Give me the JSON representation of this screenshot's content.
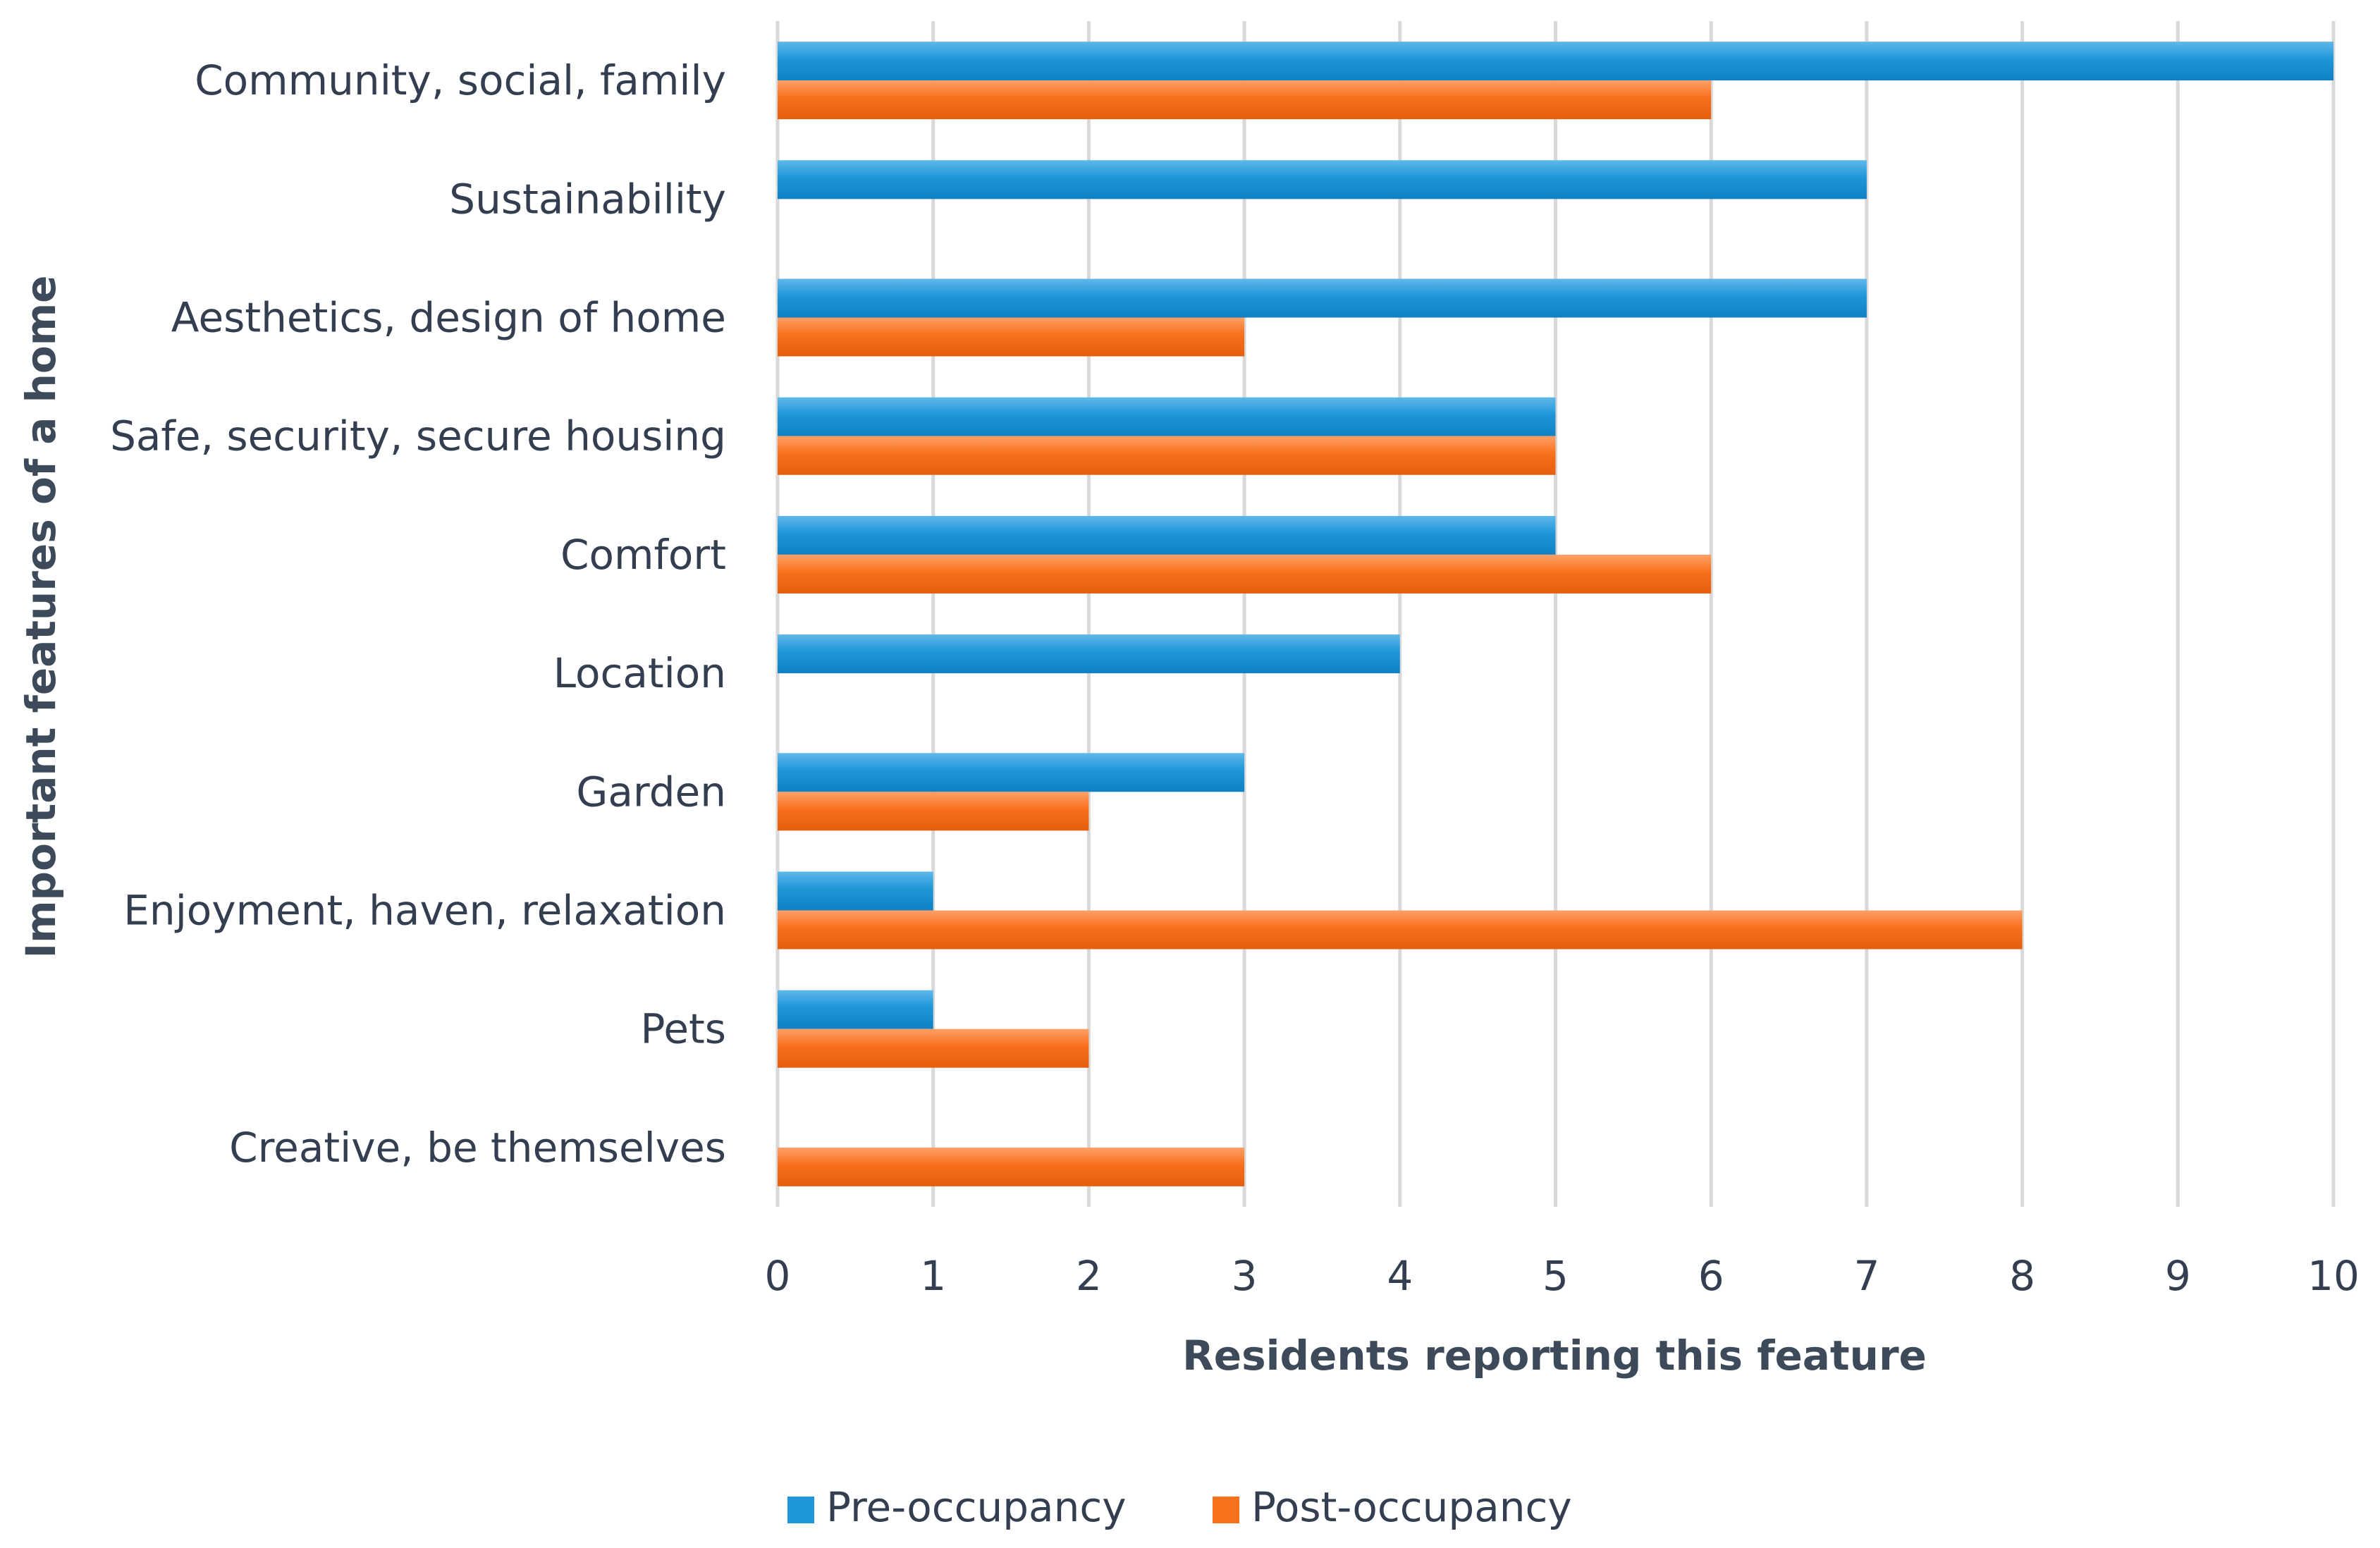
{
  "chart_data": {
    "type": "bar",
    "orientation": "horizontal",
    "title": "",
    "xlabel": "Residents reporting this feature",
    "ylabel": "Important features of a home",
    "xlim": [
      0,
      10
    ],
    "x_ticks": [
      0,
      1,
      2,
      3,
      4,
      5,
      6,
      7,
      8,
      9,
      10
    ],
    "grid": true,
    "legend_position": "bottom",
    "categories": [
      "Community, social, family",
      "Sustainability",
      "Aesthetics, design of home",
      "Safe, security, secure housing",
      "Comfort",
      "Location",
      "Garden",
      "Enjoyment, haven, relaxation",
      "Pets",
      "Creative, be themselves"
    ],
    "series": [
      {
        "name": "Pre-occupancy",
        "color": "#1f96d8",
        "values": [
          10,
          7,
          7,
          5,
          5,
          4,
          3,
          1,
          1,
          0
        ]
      },
      {
        "name": "Post-occupancy",
        "color": "#f8701c",
        "values": [
          6,
          0,
          3,
          5,
          6,
          0,
          2,
          8,
          2,
          3
        ]
      }
    ]
  }
}
